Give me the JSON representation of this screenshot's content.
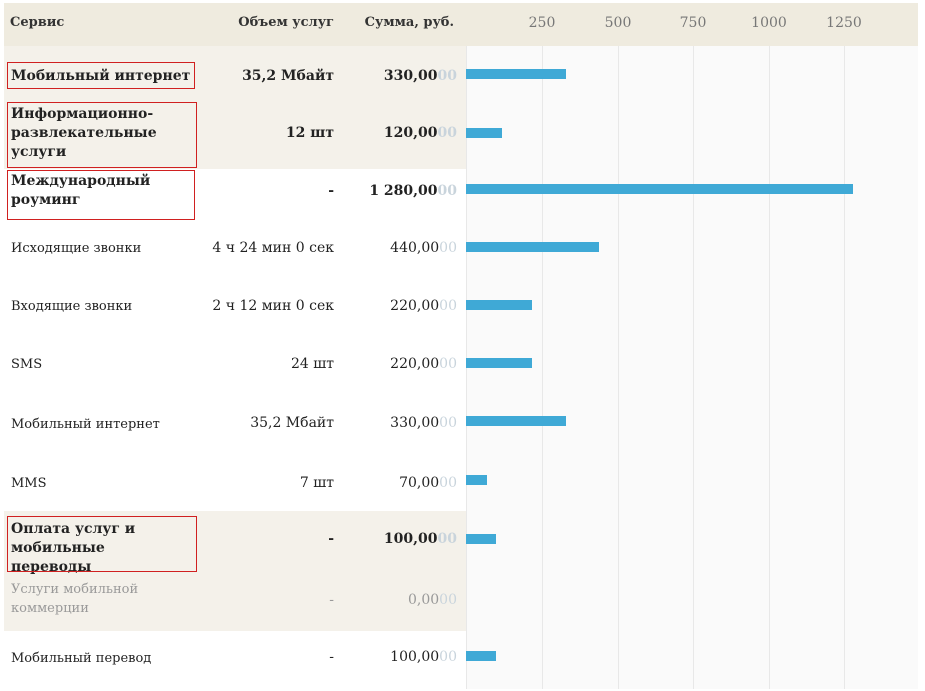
{
  "header": {
    "service": "Сервис",
    "volume": "Объем услуг",
    "sum": "Сумма, руб."
  },
  "axis": {
    "ticks": [
      "250",
      "500",
      "750",
      "1000",
      "1250"
    ],
    "tick_values": [
      250,
      500,
      750,
      1000,
      1250
    ]
  },
  "bar_color": "#3fa9d6",
  "highlight_color": "#d02020",
  "rows": [
    {
      "service": "Мобильный интернет",
      "volume": "35,2 Мбайт",
      "sum": "330,00",
      "sum_suffix": "00",
      "value": 330
    },
    {
      "service": "Информационно-развлекательные услуги",
      "volume": "12 шт",
      "sum": "120,00",
      "sum_suffix": "00",
      "value": 120
    },
    {
      "service": "Международный роуминг",
      "volume": "-",
      "sum": "1 280,00",
      "sum_suffix": "00",
      "value": 1280
    },
    {
      "service": "Исходящие звонки",
      "volume": "4 ч 24 мин 0 сек",
      "sum": "440,00",
      "sum_suffix": "00",
      "value": 440
    },
    {
      "service": "Входящие звонки",
      "volume": "2 ч 12 мин 0 сек",
      "sum": "220,00",
      "sum_suffix": "00",
      "value": 220
    },
    {
      "service": "SMS",
      "volume": "24 шт",
      "sum": "220,00",
      "sum_suffix": "00",
      "value": 220
    },
    {
      "service": "Мобильный интернет",
      "volume": "35,2 Мбайт",
      "sum": "330,00",
      "sum_suffix": "00",
      "value": 330
    },
    {
      "service": "MMS",
      "volume": "7 шт",
      "sum": "70,00",
      "sum_suffix": "00",
      "value": 70
    },
    {
      "service": "Оплата услуг и мобильные переводы",
      "volume": "-",
      "sum": "100,00",
      "sum_suffix": "00",
      "value": 100
    },
    {
      "service": "Услуги мобильной коммерции",
      "volume": "-",
      "sum": "0,00",
      "sum_suffix": "00",
      "value": 0
    },
    {
      "service": "Мобильный перевод",
      "volume": "-",
      "sum": "100,00",
      "sum_suffix": "00",
      "value": 100
    }
  ]
}
